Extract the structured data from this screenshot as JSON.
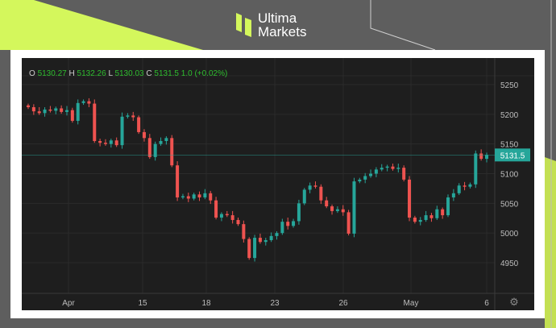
{
  "brand": {
    "line1": "Ultima",
    "line2": "Markets",
    "accent": "#d4f75c"
  },
  "ohlc": {
    "o_label": "O",
    "o": "5130.27",
    "h_label": "H",
    "h": "5132.26",
    "l_label": "L",
    "l": "5130.03",
    "c_label": "C",
    "c": "5131.5",
    "change": "1.0 (+0.02%)"
  },
  "chart_data": {
    "type": "candlestick",
    "y_ticks": [
      4950,
      5000,
      5050,
      5100,
      5150,
      5200,
      5250
    ],
    "ylim": [
      4920,
      5275
    ],
    "x_ticks": [
      "Apr",
      "15",
      "18",
      "23",
      "26",
      "May",
      "6"
    ],
    "last_price": "5131.5",
    "last_price_value": 5131.5,
    "grid": true,
    "up_color": "#26a69a",
    "down_color": "#ef5350",
    "close_series": [
      5212,
      5205,
      5202,
      5208,
      5206,
      5210,
      5204,
      5207,
      5189,
      5219,
      5222,
      5218,
      5155,
      5152,
      5150,
      5156,
      5148,
      5196,
      5198,
      5195,
      5170,
      5160,
      5128,
      5150,
      5155,
      5160,
      5114,
      5060,
      5062,
      5058,
      5065,
      5060,
      5067,
      5055,
      5026,
      5032,
      5030,
      5022,
      5015,
      4990,
      4958,
      4992,
      4985,
      4988,
      4995,
      5000,
      5019,
      5012,
      5020,
      5050,
      5073,
      5080,
      5078,
      5055,
      5045,
      5037,
      5040,
      5035,
      4999,
      5087,
      5090,
      5096,
      5100,
      5107,
      5110,
      5112,
      5108,
      5110,
      5090,
      5026,
      5019,
      5022,
      5030,
      5025,
      5040,
      5030,
      5060,
      5067,
      5080,
      5078,
      5082,
      5134,
      5125,
      5131.5
    ]
  }
}
